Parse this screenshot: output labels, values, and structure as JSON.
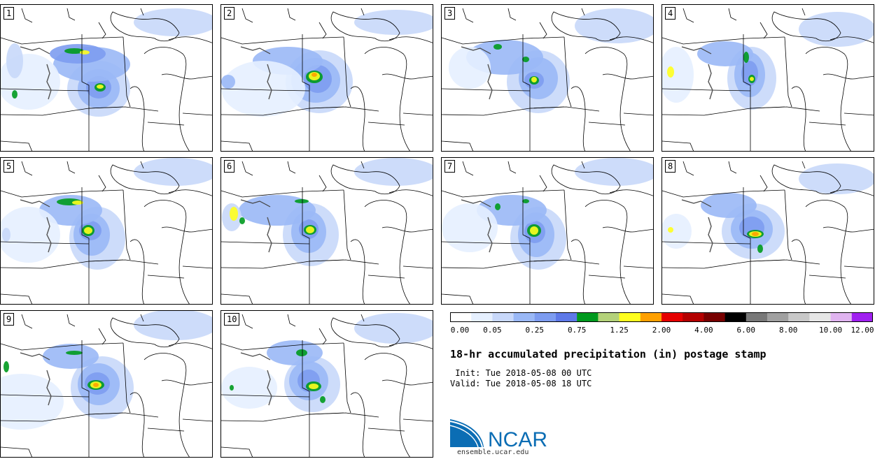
{
  "panels": [
    {
      "label": "1"
    },
    {
      "label": "2"
    },
    {
      "label": "3"
    },
    {
      "label": "4"
    },
    {
      "label": "5"
    },
    {
      "label": "6"
    },
    {
      "label": "7"
    },
    {
      "label": "8"
    },
    {
      "label": "9"
    },
    {
      "label": "10"
    }
  ],
  "colorbar": {
    "colors": [
      "#ffffff",
      "#e6f0ff",
      "#c8d8fa",
      "#9ab8f6",
      "#7d9cf0",
      "#5e79e8",
      "#009a1e",
      "#b4d27a",
      "#ffff1e",
      "#ffa000",
      "#e60000",
      "#b40000",
      "#780000",
      "#000000",
      "#787878",
      "#a0a0a0",
      "#c8c8c8",
      "#e6e6e6",
      "#e0b4f0",
      "#a020f0"
    ],
    "tick_labels": [
      "0.00",
      "0.05",
      "0.25",
      "0.75",
      "1.25",
      "2.00",
      "4.00",
      "6.00",
      "8.00",
      "10.00",
      "12.00"
    ]
  },
  "title": "18-hr accumulated precipitation (in) postage stamp",
  "init_line": " Init: Tue 2018-05-08 00 UTC",
  "valid_line": "Valid: Tue 2018-05-08 18 UTC",
  "logo": {
    "text": "NCAR",
    "url": "ensemble.ucar.edu",
    "color": "#0b6db4"
  }
}
